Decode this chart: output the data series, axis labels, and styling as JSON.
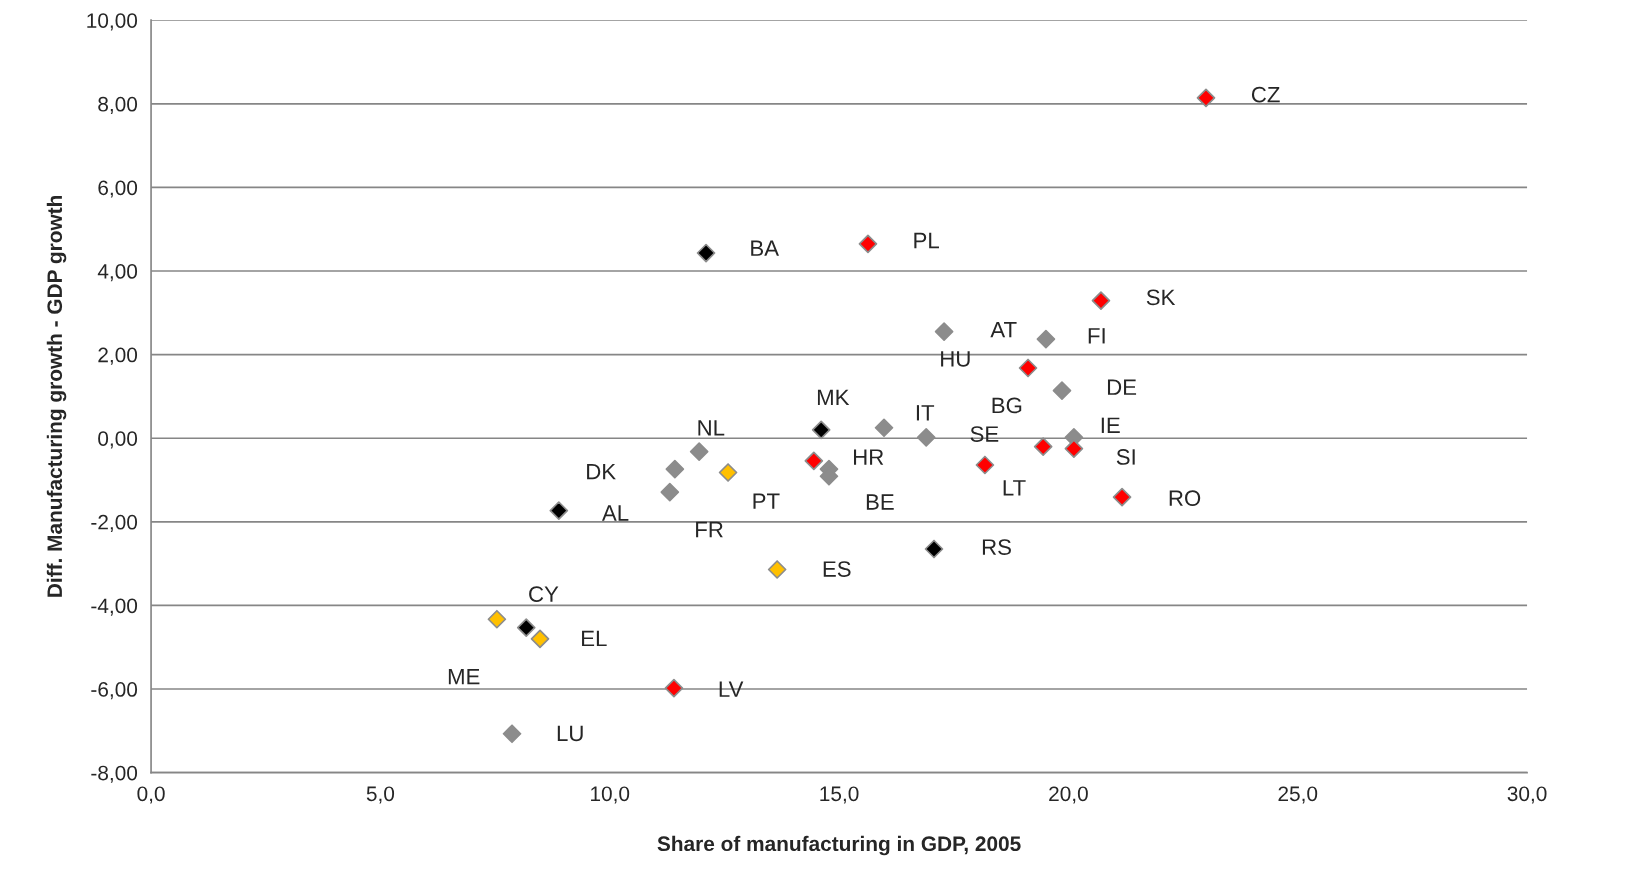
{
  "chart_data": {
    "type": "scatter",
    "xlabel": "Share of manufacturing in GDP, 2005",
    "ylabel": "Diff. Manufacturing growth - GDP growth",
    "x": [
      23.0,
      15.63,
      12.1,
      20.71,
      17.29,
      19.51,
      19.12,
      19.86,
      14.61,
      15.98,
      16.9,
      20.12,
      19.45,
      20.12,
      11.95,
      11.42,
      12.58,
      11.31,
      14.78,
      14.78,
      18.18,
      21.17,
      8.89,
      17.07,
      13.65,
      7.54,
      8.18,
      8.48,
      11.4,
      7.87,
      14.45
    ],
    "values": [
      8.14,
      4.65,
      4.43,
      3.29,
      2.55,
      2.37,
      1.68,
      1.14,
      0.2,
      0.25,
      0.02,
      0.02,
      -0.2,
      -0.25,
      -0.32,
      -0.74,
      -0.82,
      -1.29,
      -0.74,
      -0.91,
      -0.64,
      -1.41,
      -1.73,
      -2.65,
      -3.14,
      -4.33,
      -4.53,
      -4.8,
      -5.98,
      -7.07,
      -0.54
    ],
    "colors": [
      "#ff0000",
      "#ff0000",
      "#000000",
      "#ff0000",
      "#8c8c8c",
      "#8c8c8c",
      "#ff0000",
      "#8c8c8c",
      "#000000",
      "#8c8c8c",
      "#8c8c8c",
      "#8c8c8c",
      "#ff0000",
      "#ff0000",
      "#8c8c8c",
      "#8c8c8c",
      "#ffc000",
      "#8c8c8c",
      "#8c8c8c",
      "#8c8c8c",
      "#ff0000",
      "#ff0000",
      "#000000",
      "#000000",
      "#ffc000",
      "#ffc000",
      "#000000",
      "#ffc000",
      "#ff0000",
      "#8c8c8c",
      "#ff0000"
    ],
    "annotations": [
      {
        "text": "CZ",
        "x": 23.0,
        "y": 8.14
      },
      {
        "text": "PL",
        "x": 15.63,
        "y": 4.65
      },
      {
        "text": "BA",
        "x": 12.1,
        "y": 4.43
      },
      {
        "text": "SK",
        "x": 20.71,
        "y": 3.29
      },
      {
        "text": "AT",
        "x": 17.29,
        "y": 2.55
      },
      {
        "text": "FI",
        "x": 19.51,
        "y": 2.37
      },
      {
        "text": "HU",
        "x": 19.12,
        "y": 1.68
      },
      {
        "text": "DE",
        "x": 19.86,
        "y": 1.14
      },
      {
        "text": "MK",
        "x": 14.61,
        "y": 0.2
      },
      {
        "text": "IT",
        "x": 15.98,
        "y": 0.25
      },
      {
        "text": "SE",
        "x": 16.9,
        "y": 0.02
      },
      {
        "text": "IE",
        "x": 20.12,
        "y": 0.02
      },
      {
        "text": "BG",
        "x": 19.45,
        "y": -0.2
      },
      {
        "text": "SI",
        "x": 20.12,
        "y": -0.25
      },
      {
        "text": "NL",
        "x": 11.95,
        "y": -0.32
      },
      {
        "text": "DK",
        "x": 11.42,
        "y": -0.74
      },
      {
        "text": "PT",
        "x": 12.58,
        "y": -0.82
      },
      {
        "text": "FR",
        "x": 11.31,
        "y": -1.29
      },
      {
        "text": "HR",
        "x": 14.78,
        "y": -0.74
      },
      {
        "text": "BE",
        "x": 14.78,
        "y": -0.91
      },
      {
        "text": "LT",
        "x": 18.18,
        "y": -0.64
      },
      {
        "text": "RO",
        "x": 21.17,
        "y": -1.41
      },
      {
        "text": "AL",
        "x": 8.89,
        "y": -1.73
      },
      {
        "text": "RS",
        "x": 17.07,
        "y": -2.65
      },
      {
        "text": "ES",
        "x": 13.65,
        "y": -3.14
      },
      {
        "text": "CY",
        "x": 7.54,
        "y": -4.33
      },
      {
        "text": "ME",
        "x": 8.18,
        "y": -4.53
      },
      {
        "text": "EL",
        "x": 8.48,
        "y": -4.8
      },
      {
        "text": "LV",
        "x": 11.4,
        "y": -5.98
      },
      {
        "text": "LU",
        "x": 7.87,
        "y": -7.07
      }
    ],
    "xlim": [
      0,
      30
    ],
    "xticks": [
      {
        "value": 0,
        "label": "0,0"
      },
      {
        "value": 5,
        "label": "5,0"
      },
      {
        "value": 10,
        "label": "10,0"
      },
      {
        "value": 15,
        "label": "15,0"
      },
      {
        "value": 20,
        "label": "20,0"
      },
      {
        "value": 25,
        "label": "25,0"
      },
      {
        "value": 30,
        "label": "30,0"
      }
    ],
    "ylim": [
      -8,
      10
    ],
    "yticks": [
      {
        "value": -8,
        "label": "-8,00"
      },
      {
        "value": -6,
        "label": "-6,00"
      },
      {
        "value": -4,
        "label": "-4,00"
      },
      {
        "value": -2,
        "label": "-2,00"
      },
      {
        "value": 0,
        "label": "0,00"
      },
      {
        "value": 2,
        "label": "2,00"
      },
      {
        "value": 4,
        "label": "4,00"
      },
      {
        "value": 6,
        "label": "6,00"
      },
      {
        "value": 8,
        "label": "8,00"
      },
      {
        "value": 10,
        "label": "10,00"
      }
    ],
    "grid": "y",
    "marker": "diamond"
  }
}
